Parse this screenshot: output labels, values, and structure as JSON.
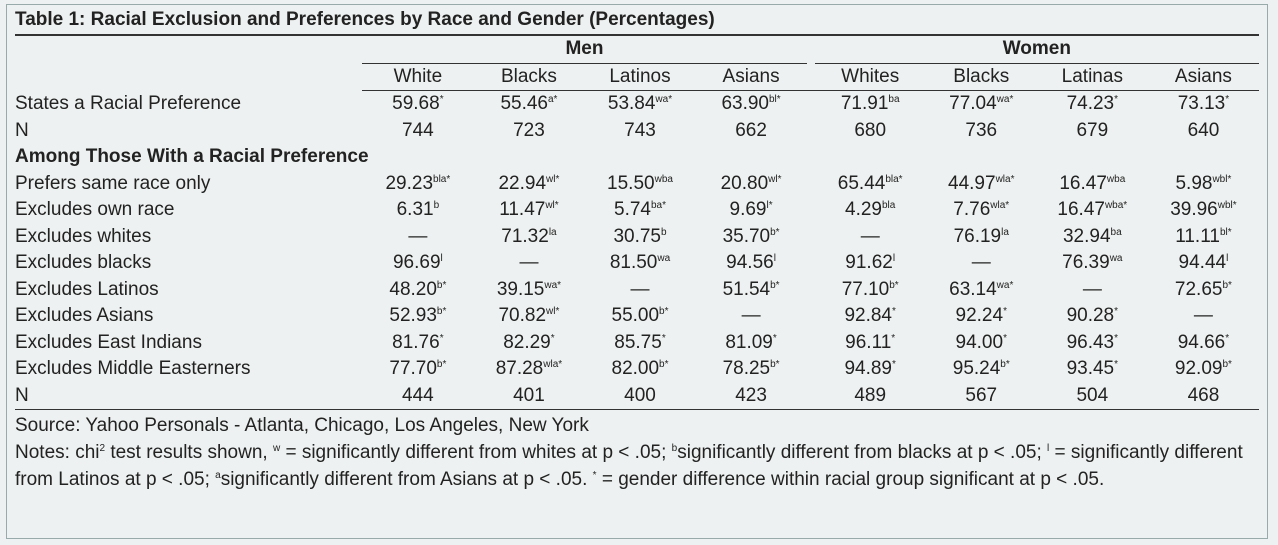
{
  "title": "Table 1: Racial Exclusion and Preferences by Race and Gender (Percentages)",
  "groups": [
    "Men",
    "Women"
  ],
  "columns": [
    "White",
    "Blacks",
    "Latinos",
    "Asians",
    "Whites",
    "Blacks",
    "Latinas",
    "Asians"
  ],
  "rows_top": [
    {
      "label": "States a Racial Preference",
      "cells": [
        {
          "v": "59.68",
          "s": "*"
        },
        {
          "v": "55.46",
          "s": "a*"
        },
        {
          "v": "53.84",
          "s": "wa*"
        },
        {
          "v": "63.90",
          "s": "bl*"
        },
        {
          "v": "71.91",
          "s": "ba"
        },
        {
          "v": "77.04",
          "s": "wa*"
        },
        {
          "v": "74.23",
          "s": "*"
        },
        {
          "v": "73.13",
          "s": "*"
        }
      ]
    },
    {
      "label": "N",
      "cells": [
        "744",
        "723",
        "743",
        "662",
        "680",
        "736",
        "679",
        "640"
      ]
    }
  ],
  "section": "Among Those With a Racial Preference",
  "rows_bottom": [
    {
      "label": "Prefers same race only",
      "cells": [
        {
          "v": "29.23",
          "s": "bla*"
        },
        {
          "v": "22.94",
          "s": "wl*"
        },
        {
          "v": "15.50",
          "s": "wba"
        },
        {
          "v": "20.80",
          "s": "wl*"
        },
        {
          "v": "65.44",
          "s": "bla*"
        },
        {
          "v": "44.97",
          "s": "wla*"
        },
        {
          "v": "16.47",
          "s": "wba"
        },
        {
          "v": "5.98",
          "s": "wbl*"
        }
      ]
    },
    {
      "label": "Excludes own race",
      "cells": [
        {
          "v": "6.31",
          "s": "b"
        },
        {
          "v": "11.47",
          "s": "wl*"
        },
        {
          "v": "5.74",
          "s": "ba*"
        },
        {
          "v": "9.69",
          "s": "l*"
        },
        {
          "v": "4.29",
          "s": "bla"
        },
        {
          "v": "7.76",
          "s": "wla*"
        },
        {
          "v": "16.47",
          "s": "wba*"
        },
        {
          "v": "39.96",
          "s": "wbl*"
        }
      ]
    },
    {
      "label": "Excludes whites",
      "cells": [
        {
          "v": "—"
        },
        {
          "v": "71.32",
          "s": "la"
        },
        {
          "v": "30.75",
          "s": "b"
        },
        {
          "v": "35.70",
          "s": "b*"
        },
        {
          "v": "—"
        },
        {
          "v": "76.19",
          "s": "la"
        },
        {
          "v": "32.94",
          "s": "ba"
        },
        {
          "v": "11.11",
          "s": "bl*"
        }
      ]
    },
    {
      "label": "Excludes blacks",
      "cells": [
        {
          "v": "96.69",
          "s": "l"
        },
        {
          "v": "—"
        },
        {
          "v": "81.50",
          "s": "wa"
        },
        {
          "v": "94.56",
          "s": "l"
        },
        {
          "v": "91.62",
          "s": "l"
        },
        {
          "v": "—"
        },
        {
          "v": "76.39",
          "s": "wa"
        },
        {
          "v": "94.44",
          "s": "l"
        }
      ]
    },
    {
      "label": "Excludes Latinos",
      "cells": [
        {
          "v": "48.20",
          "s": "b*"
        },
        {
          "v": "39.15",
          "s": "wa*"
        },
        {
          "v": "—"
        },
        {
          "v": "51.54",
          "s": "b*"
        },
        {
          "v": "77.10",
          "s": "b*"
        },
        {
          "v": "63.14",
          "s": "wa*"
        },
        {
          "v": "—"
        },
        {
          "v": "72.65",
          "s": "b*"
        }
      ]
    },
    {
      "label": "Excludes Asians",
      "cells": [
        {
          "v": "52.93",
          "s": "b*"
        },
        {
          "v": "70.82",
          "s": "wl*"
        },
        {
          "v": "55.00",
          "s": "b*"
        },
        {
          "v": "—"
        },
        {
          "v": "92.84",
          "s": "*"
        },
        {
          "v": "92.24",
          "s": "*"
        },
        {
          "v": "90.28",
          "s": "*"
        },
        {
          "v": "—"
        }
      ]
    },
    {
      "label": "Excludes East Indians",
      "cells": [
        {
          "v": "81.76",
          "s": "*"
        },
        {
          "v": "82.29",
          "s": "*"
        },
        {
          "v": "85.75",
          "s": "*"
        },
        {
          "v": "81.09",
          "s": "*"
        },
        {
          "v": "96.11",
          "s": "*"
        },
        {
          "v": "94.00",
          "s": "*"
        },
        {
          "v": "96.43",
          "s": "*"
        },
        {
          "v": "94.66",
          "s": "*"
        }
      ]
    },
    {
      "label": "Excludes Middle Easterners",
      "cells": [
        {
          "v": "77.70",
          "s": "b*"
        },
        {
          "v": "87.28",
          "s": "wla*"
        },
        {
          "v": "82.00",
          "s": "b*"
        },
        {
          "v": "78.25",
          "s": "b*"
        },
        {
          "v": "94.89",
          "s": "*"
        },
        {
          "v": "95.24",
          "s": "b*"
        },
        {
          "v": "93.45",
          "s": "*"
        },
        {
          "v": "92.09",
          "s": "b*"
        }
      ]
    },
    {
      "label": "N",
      "cells": [
        "444",
        "401",
        "400",
        "423",
        "489",
        "567",
        "504",
        "468"
      ]
    }
  ],
  "source": "Source: Yahoo Personals - Atlanta, Chicago, Los Angeles, New York",
  "notes": [
    {
      "text": "Notes: chi"
    },
    {
      "sup": "2"
    },
    {
      "text": " test results shown, "
    },
    {
      "sup": "w"
    },
    {
      "text": " = significantly different from whites at p < .05; "
    },
    {
      "sup": "b"
    },
    {
      "text": "significantly different from blacks at p < .05; "
    },
    {
      "sup": "l"
    },
    {
      "text": " = significantly different from Latinos at p < .05; "
    },
    {
      "sup": "a"
    },
    {
      "text": "significantly different from Asians at p < .05. "
    },
    {
      "sup": "*"
    },
    {
      "text": " = gender difference within racial group significant at p < .05."
    }
  ]
}
